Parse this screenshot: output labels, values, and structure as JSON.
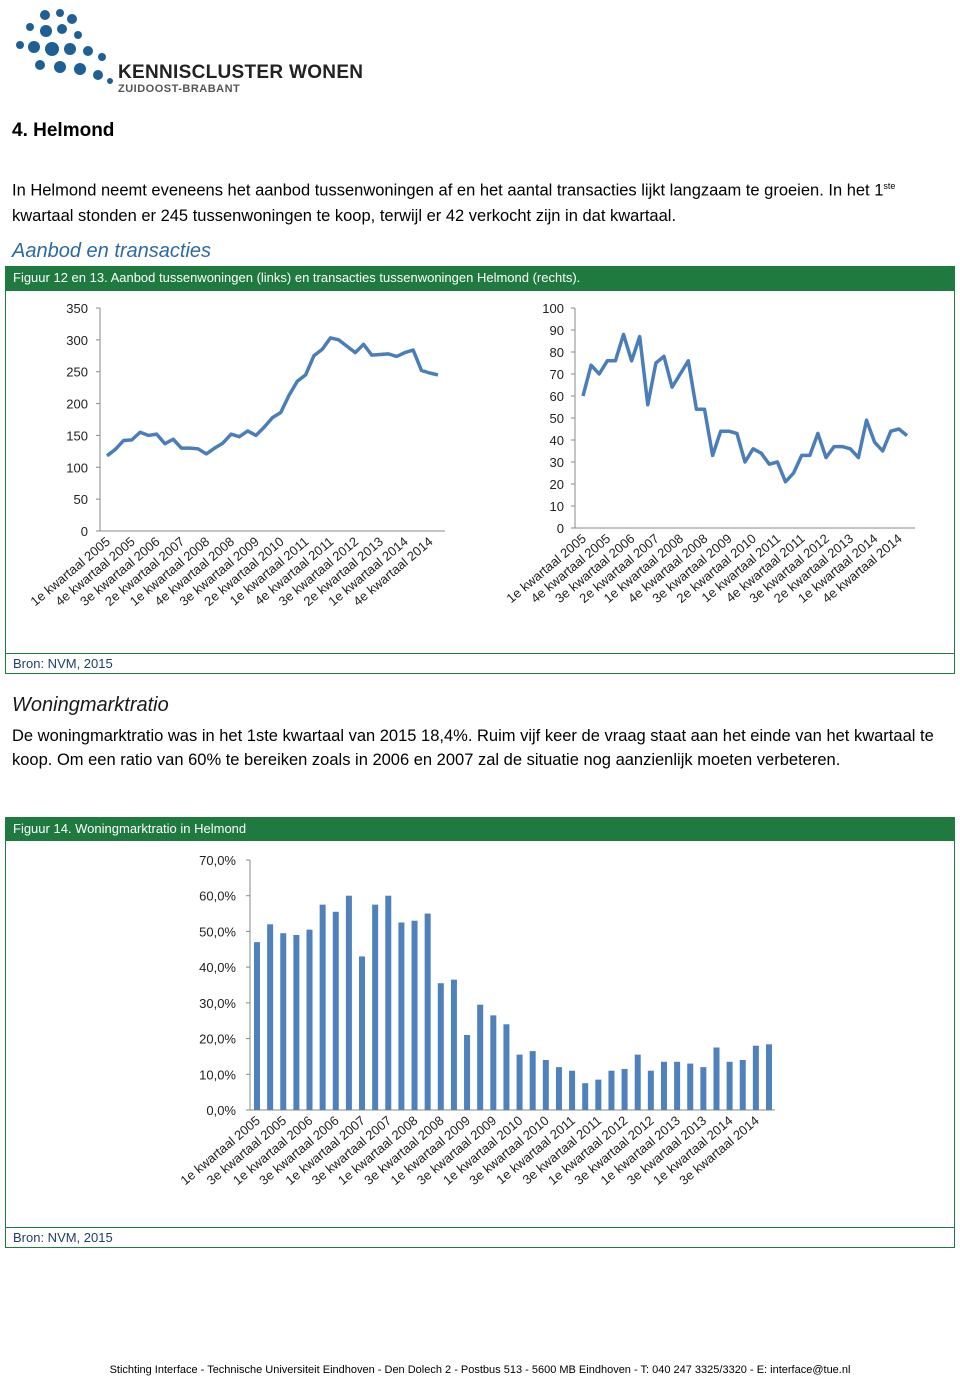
{
  "logo": {
    "name": "KENNISCLUSTER WONEN",
    "region": "ZUIDOOST-BRABANT"
  },
  "heading": "4. Helmond",
  "intro": {
    "before": "In Helmond neemt eveneens het aanbod tussenwoningen af en het aantal transacties lijkt langzaam te groeien. In het 1",
    "sup": "ste",
    "after": " kwartaal stonden er 245 tussenwoningen te koop, terwijl er 42 verkocht zijn in dat kwartaal."
  },
  "section1": "Aanbod en transacties",
  "figure1": {
    "caption": "Figuur 12 en 13. Aanbod tussenwoningen (links) en transacties tussenwoningen Helmond (rechts).",
    "source": "Bron: NVM, 2015"
  },
  "section2": "Woningmarktratio",
  "ratio_text": "De woningmarktratio was in het 1ste kwartaal van 2015 18,4%. Ruim vijf keer de vraag staat aan het einde van het kwartaal te koop. Om een ratio van 60% te bereiken zoals in 2006 en 2007 zal de situatie nog aanzienlijk moeten verbeteren.",
  "figure2": {
    "caption": "Figuur 14. Woningmarktratio in Helmond",
    "source": "Bron: NVM, 2015"
  },
  "footer": "Stichting Interface - Technische Universiteit Eindhoven - Den Dolech 2 - Postbus 513 - 5600 MB Eindhoven - T: 040 247 3325/3320 - E: interface@tue.nl",
  "chart_data": [
    {
      "type": "line",
      "color": "#4a7ebb",
      "categories": [
        "1e kwartaal 2005",
        null,
        null,
        "4e kwartaal 2005",
        null,
        null,
        "3e kwartaal 2006",
        null,
        null,
        "2e kwartaal 2007",
        null,
        null,
        "1e kwartaal 2008",
        null,
        null,
        "4e kwartaal 2008",
        null,
        null,
        "3e kwartaal 2009",
        null,
        null,
        "2e kwartaal 2010",
        null,
        null,
        "1e kwartaal 2011",
        null,
        null,
        "4e kwartaal 2011",
        null,
        null,
        "3e kwartaal 2012",
        null,
        null,
        "2e kwartaal 2013",
        null,
        null,
        "1e kwartaal 2014",
        null,
        null,
        "4e kwartaal 2014",
        null
      ],
      "values": [
        118,
        128,
        142,
        143,
        155,
        150,
        152,
        137,
        144,
        130,
        130,
        129,
        121,
        130,
        138,
        152,
        148,
        157,
        150,
        163,
        178,
        186,
        213,
        235,
        245,
        275,
        285,
        303,
        300,
        290,
        280,
        293,
        276,
        277,
        278,
        274,
        280,
        284,
        252,
        248,
        245
      ],
      "ylim": [
        0,
        350
      ],
      "yticks": [
        0,
        50,
        100,
        150,
        200,
        250,
        300,
        350
      ],
      "grid": false
    },
    {
      "type": "line",
      "color": "#4a7ebb",
      "categories": [
        "1e kwartaal 2005",
        null,
        null,
        "4e kwartaal 2005",
        null,
        null,
        "3e kwartaal 2006",
        null,
        null,
        "2e kwartaal 2007",
        null,
        null,
        "1e kwartaal 2008",
        null,
        null,
        "4e kwartaal 2008",
        null,
        null,
        "3e kwartaal 2009",
        null,
        null,
        "2e kwartaal 2010",
        null,
        null,
        "1e kwartaal 2011",
        null,
        null,
        "4e kwartaal 2011",
        null,
        null,
        "3e kwartaal 2012",
        null,
        null,
        "2e kwartaal 2013",
        null,
        null,
        "1e kwartaal 2014",
        null,
        null,
        "4e kwartaal 2014",
        null
      ],
      "values": [
        60,
        74,
        70,
        76,
        76,
        88,
        76,
        87,
        56,
        75,
        78,
        64,
        70,
        76,
        54,
        54,
        33,
        44,
        44,
        43,
        30,
        36,
        34,
        29,
        30,
        21,
        25,
        33,
        33,
        43,
        32,
        37,
        37,
        36,
        32,
        49,
        39,
        35,
        44,
        45,
        42
      ],
      "ylim": [
        0,
        100
      ],
      "yticks": [
        0,
        10,
        20,
        30,
        40,
        50,
        60,
        70,
        80,
        90,
        100
      ],
      "grid": false
    },
    {
      "type": "bar",
      "color": "#4f81bd",
      "categories": [
        "1e kwartaal 2005",
        null,
        "3e kwartaal 2005",
        null,
        "1e kwartaal 2006",
        null,
        "3e kwartaal 2006",
        null,
        "1e kwartaal 2007",
        null,
        "3e kwartaal 2007",
        null,
        "1e kwartaal 2008",
        null,
        "3e kwartaal 2008",
        null,
        "1e kwartaal 2009",
        null,
        "3e kwartaal 2009",
        null,
        "1e kwartaal 2010",
        null,
        "3e kwartaal 2010",
        null,
        "1e kwartaal 2011",
        null,
        "3e kwartaal 2011",
        null,
        "1e kwartaal 2012",
        null,
        "3e kwartaal 2012",
        null,
        "1e kwartaal 2013",
        null,
        "3e kwartaal 2013",
        null,
        "1e kwartaal 2014",
        null,
        "3e kwartaal 2014",
        null
      ],
      "values": [
        47,
        52,
        49.5,
        49,
        50.5,
        57.5,
        55.5,
        60,
        43,
        57.5,
        60,
        52.5,
        53,
        55,
        35.5,
        36.5,
        21,
        29.5,
        26.5,
        24,
        15.5,
        16.5,
        14,
        12,
        11,
        7.5,
        8.5,
        11,
        11.5,
        15.5,
        11,
        13.5,
        13.5,
        13,
        12,
        17.5,
        13.5,
        14,
        18,
        18.4
      ],
      "ylim": [
        0,
        70
      ],
      "yticks": [
        {
          "value": 0,
          "label": "0,0%"
        },
        {
          "value": 10,
          "label": "10,0%"
        },
        {
          "value": 20,
          "label": "20,0%"
        },
        {
          "value": 30,
          "label": "30,0%"
        },
        {
          "value": 40,
          "label": "40,0%"
        },
        {
          "value": 50,
          "label": "50,0%"
        },
        {
          "value": 60,
          "label": "60,0%"
        },
        {
          "value": 70,
          "label": "70,0%"
        }
      ],
      "grid": false
    }
  ]
}
